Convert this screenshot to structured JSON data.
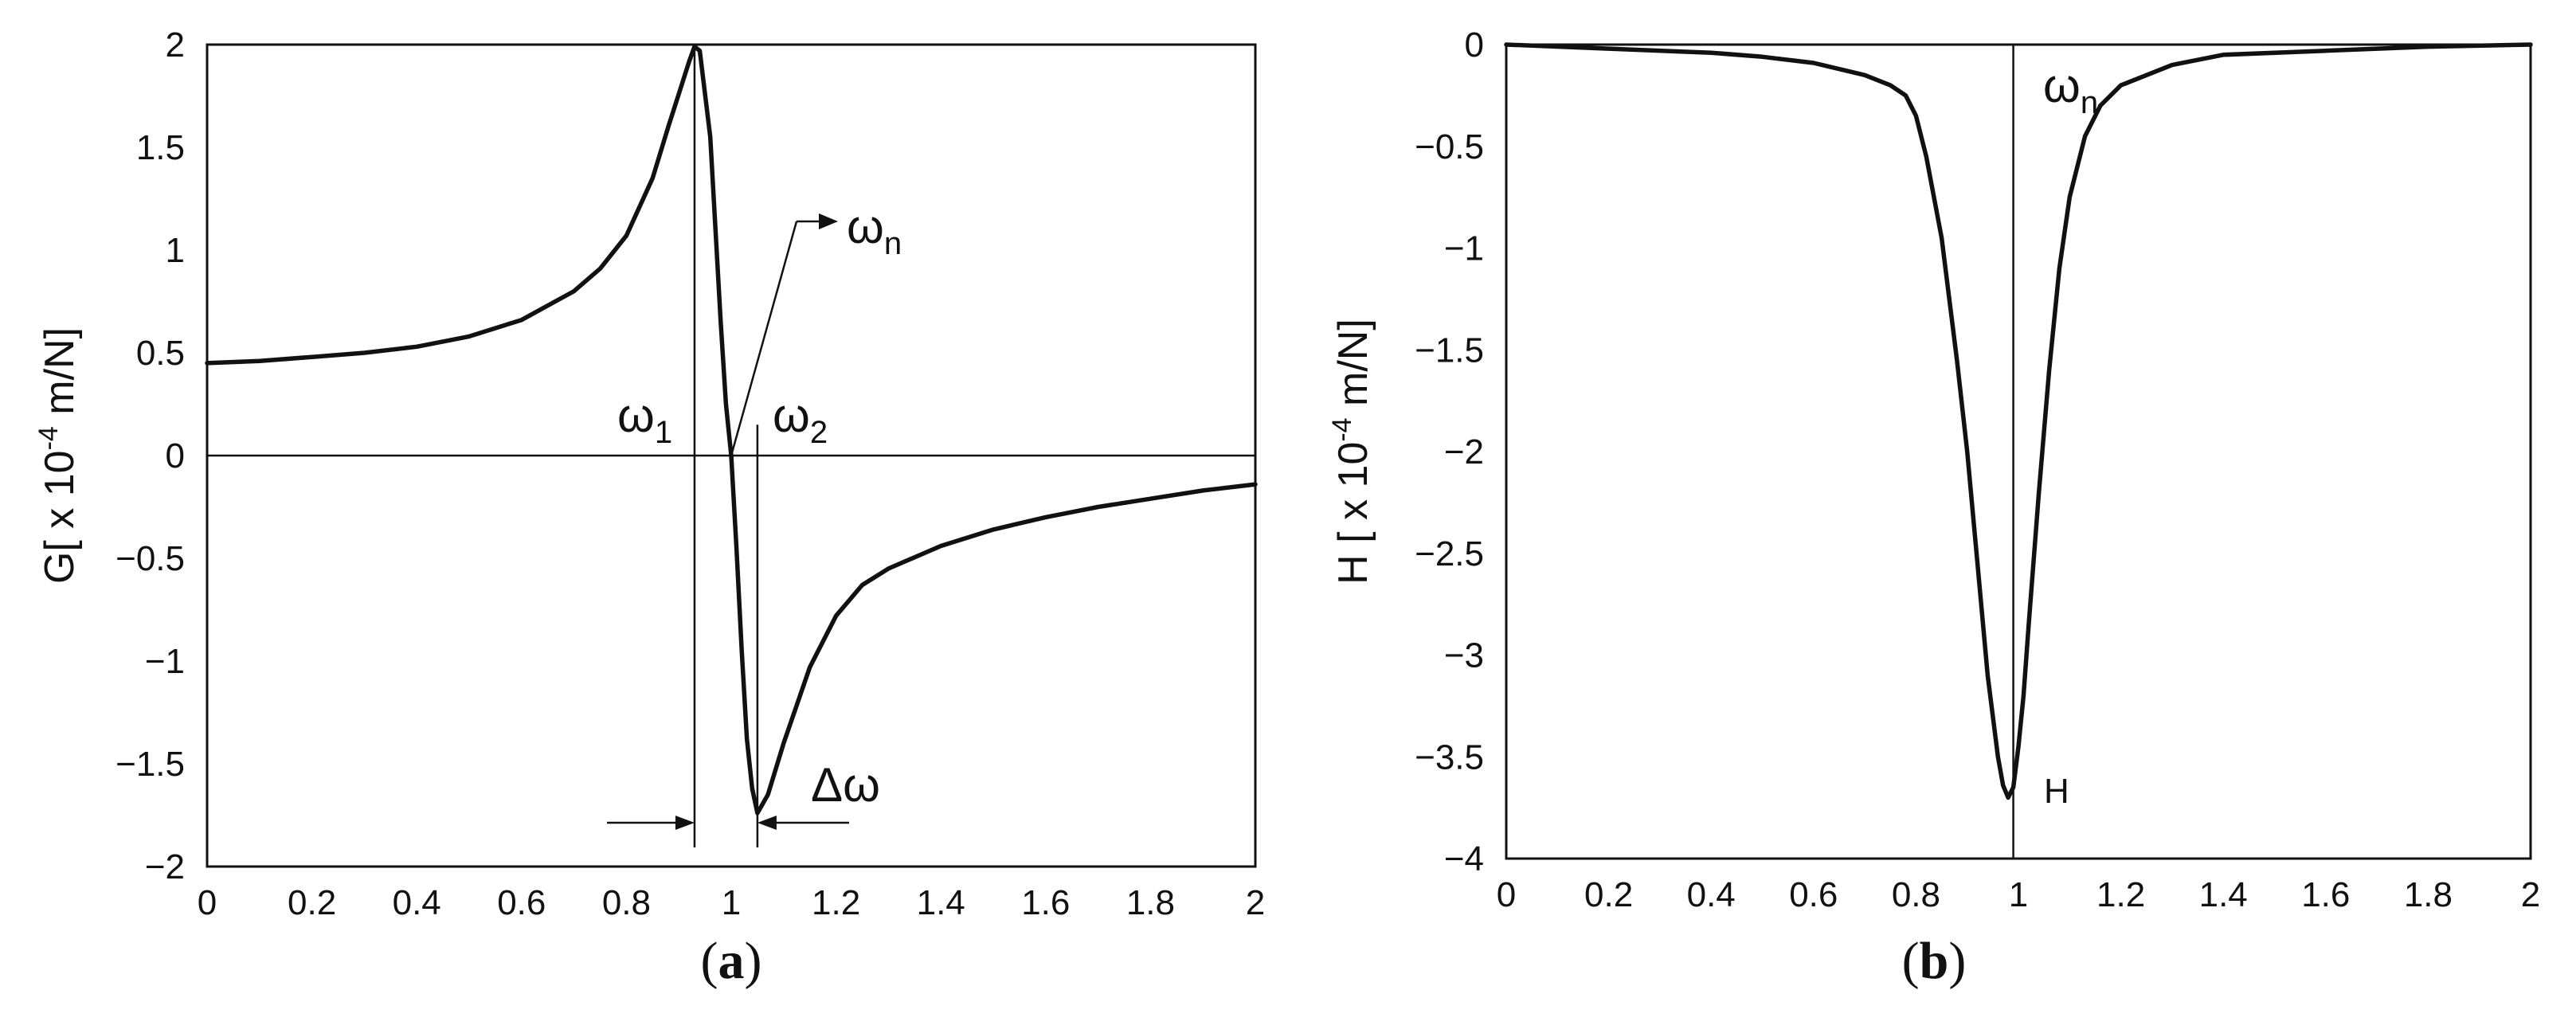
{
  "chart_data": [
    {
      "type": "line",
      "panel": "(a)",
      "caption_letter": "a",
      "ylabel": "G[ x 10",
      "ylabel_exp": "-4",
      "ylabel_unit": " m/N]",
      "xlim": [
        0,
        2
      ],
      "ylim": [
        -2,
        2
      ],
      "x_ticks": [
        "0",
        "0.2",
        "0.4",
        "0.6",
        "0.8",
        "1",
        "1.2",
        "1.4",
        "1.6",
        "1.8",
        "2"
      ],
      "y_ticks": [
        "2",
        "1.5",
        "1",
        "0.5",
        "0",
        "-0.5",
        "-1",
        "-1.5",
        "-2"
      ],
      "series": [
        {
          "x": [
            0,
            0.1,
            0.2,
            0.3,
            0.4,
            0.5,
            0.6,
            0.7,
            0.75,
            0.8,
            0.85,
            0.88,
            0.9,
            0.92,
            0.93,
            0.94,
            0.96,
            0.98,
            0.99,
            1.0,
            1.01,
            1.02,
            1.03,
            1.04,
            1.05,
            1.07,
            1.1,
            1.15,
            1.2,
            1.25,
            1.3,
            1.4,
            1.5,
            1.6,
            1.7,
            1.8,
            1.9,
            2.0
          ],
          "values": [
            0.45,
            0.46,
            0.48,
            0.5,
            0.53,
            0.58,
            0.66,
            0.8,
            0.91,
            1.07,
            1.35,
            1.6,
            1.76,
            1.92,
            1.99,
            1.97,
            1.55,
            0.65,
            0.25,
            0.0,
            -0.45,
            -0.95,
            -1.38,
            -1.62,
            -1.74,
            -1.65,
            -1.4,
            -1.03,
            -0.78,
            -0.63,
            -0.55,
            -0.44,
            -0.36,
            -0.3,
            -0.25,
            -0.21,
            -0.17,
            -0.14
          ]
        }
      ],
      "annotations": {
        "w1": {
          "base": "ω",
          "sub": "1",
          "x": 0.93
        },
        "w2": {
          "base": "ω",
          "sub": "2",
          "x": 1.05
        },
        "wn": {
          "base": "ω",
          "sub": "n",
          "x": 1.0
        },
        "dw": {
          "text": "Δω"
        }
      }
    },
    {
      "type": "line",
      "panel": "(b)",
      "caption_letter": "b",
      "ylabel": "H [ x 10",
      "ylabel_exp": "-4",
      "ylabel_unit": " m/N]",
      "xlim": [
        0,
        2
      ],
      "ylim": [
        -4,
        0
      ],
      "x_ticks": [
        "0",
        "0.2",
        "0.4",
        "0.6",
        "0.8",
        "1",
        "1.2",
        "1.4",
        "1.6",
        "1.8",
        "2"
      ],
      "y_ticks": [
        "0",
        "-0.5",
        "-1",
        "-1.5",
        "-2",
        "-2.5",
        "-3",
        "-3.5",
        "-4"
      ],
      "series": [
        {
          "x": [
            0,
            0.2,
            0.4,
            0.5,
            0.6,
            0.7,
            0.75,
            0.78,
            0.8,
            0.82,
            0.85,
            0.88,
            0.9,
            0.92,
            0.94,
            0.96,
            0.97,
            0.98,
            0.99,
            1.0,
            1.01,
            1.02,
            1.04,
            1.06,
            1.08,
            1.1,
            1.13,
            1.16,
            1.2,
            1.3,
            1.4,
            1.6,
            1.8,
            2.0
          ],
          "values": [
            0.0,
            -0.02,
            -0.04,
            -0.06,
            -0.09,
            -0.15,
            -0.2,
            -0.25,
            -0.35,
            -0.55,
            -0.95,
            -1.55,
            -2.0,
            -2.55,
            -3.1,
            -3.5,
            -3.64,
            -3.7,
            -3.65,
            -3.45,
            -3.2,
            -2.85,
            -2.2,
            -1.6,
            -1.1,
            -0.75,
            -0.45,
            -0.3,
            -0.2,
            -0.1,
            -0.05,
            -0.03,
            -0.01,
            0.0
          ]
        }
      ],
      "annotations": {
        "wn": {
          "base": "ω",
          "sub": "n",
          "x": 0.99
        },
        "peak": {
          "text": "H"
        }
      }
    }
  ]
}
